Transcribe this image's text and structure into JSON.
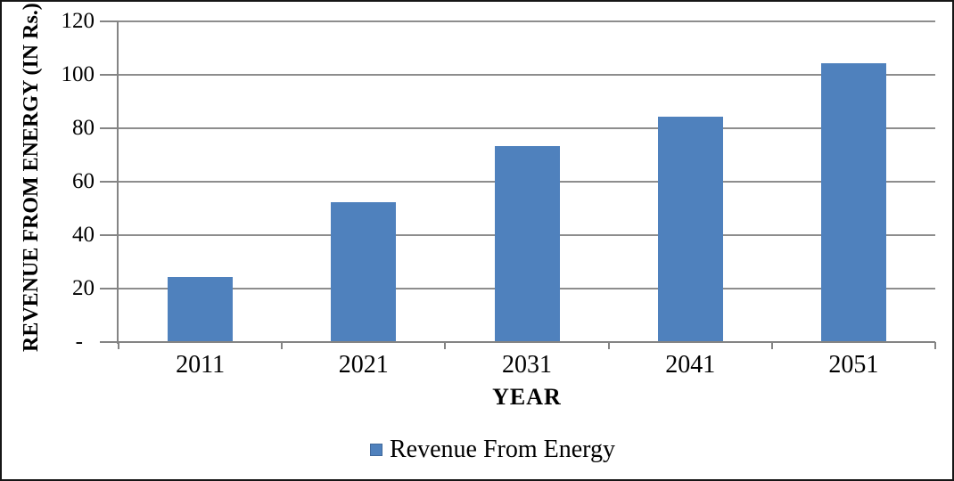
{
  "chart_data": {
    "type": "bar",
    "title": "",
    "categories": [
      "2011",
      "2021",
      "2031",
      "2041",
      "2051"
    ],
    "series": [
      {
        "name": "Revenue From Energy",
        "values": [
          24,
          52,
          73,
          84,
          104
        ],
        "color": "#4f81bd"
      }
    ],
    "xlabel": "YEAR",
    "ylabel": "REVENUE FROM ENERGY (IN Rs.)",
    "ylim": [
      0,
      120
    ],
    "ytick_step": 20,
    "zero_tick_label": "-",
    "grid": true,
    "legend_position": "bottom",
    "colors": {
      "bar": "#4f81bd",
      "gridline": "#8d8d8d",
      "axis": "#848484",
      "text": "#000000",
      "frame_border": "#161616",
      "background": "#ffffff"
    }
  }
}
